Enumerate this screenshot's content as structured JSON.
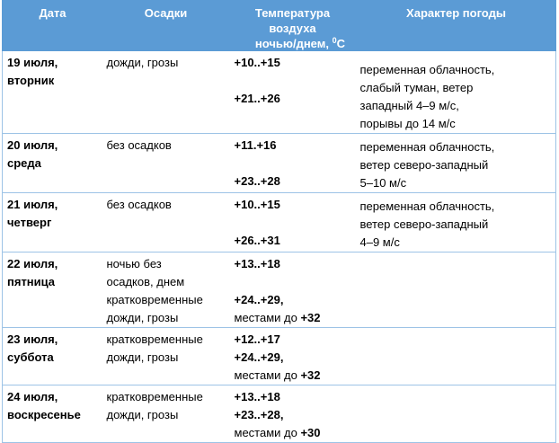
{
  "table": {
    "headers": {
      "date": "Дата",
      "precip": "Осадки",
      "temp_line1": "Температура",
      "temp_line2": "воздуха",
      "temp_line3": "ночью/днем, ",
      "temp_sup": "0",
      "temp_unit": "C",
      "weather": "Характер погоды"
    },
    "rows": [
      {
        "date1": "19 июля,",
        "date2": "вторник",
        "precip": [
          "дожди, грозы"
        ],
        "night": "+10..+15",
        "day": "+21..+26",
        "weather": [
          "переменная облачность,",
          "слабый туман, ветер",
          "западный 4–9 м/с,",
          "порывы до 14 м/с"
        ]
      },
      {
        "date1": "20 июля,",
        "date2": "среда",
        "precip": [
          "без осадков"
        ],
        "night": "+11.+16",
        "day": "+23..+28",
        "weather": [
          "переменная облачность,",
          "ветер северо-западный",
          "5–10 м/с"
        ]
      },
      {
        "date1": "21 июля,",
        "date2": "четверг",
        "precip": [
          "без осадков"
        ],
        "night": "+10..+15",
        "day": "+26..+31",
        "weather": [
          "переменная облачность,",
          "ветер северо-западный",
          "4–9 м/с"
        ]
      },
      {
        "date1": "22 июля,",
        "date2": "пятница",
        "precip": [
          "ночью без",
          "осадков, днем",
          "кратковременные",
          "дожди, грозы"
        ],
        "night": "+13..+18",
        "day": "+24..+29,",
        "day_extra_prefix": "местами до ",
        "day_extra_value": "+32",
        "weather": []
      },
      {
        "date1": "23 июля,",
        "date2": "суббота",
        "precip": [
          "кратковременные",
          "дожди, грозы"
        ],
        "night": "+12..+17",
        "day": "+24..+29,",
        "day_extra_prefix": "местами до ",
        "day_extra_value": "+32",
        "weather": []
      },
      {
        "date1": "24 июля,",
        "date2": "воскресенье",
        "precip": [
          "кратковременные",
          "дожди, грозы"
        ],
        "night": "+13..+18",
        "day": "+23..+28,",
        "day_extra_prefix": "местами до ",
        "day_extra_value": "+30",
        "weather": []
      }
    ]
  }
}
